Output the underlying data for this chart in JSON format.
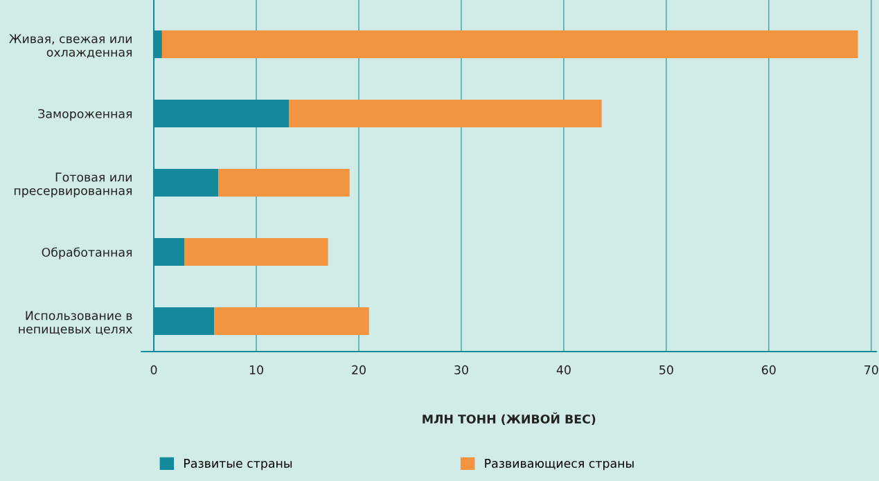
{
  "chart_data": {
    "type": "bar",
    "orientation": "horizontal",
    "stacked": true,
    "categories": [
      "Живая, свежая или\nохлажденная",
      "Замороженная",
      "Готовая или\nпресервированная",
      "Обработанная",
      "Использование в\nнепищевых целях"
    ],
    "series": [
      {
        "name": "Развитые страны",
        "color": "#128a9c",
        "values": [
          0.8,
          13.2,
          6.3,
          3.0,
          5.9
        ]
      },
      {
        "name": "Развивающиеся страны",
        "color": "#f39441",
        "values": [
          67.9,
          30.5,
          12.8,
          14.0,
          15.1
        ]
      }
    ],
    "xlabel": "МЛН ТОНН (ЖИВОЙ ВЕС)",
    "xlim": [
      -1.2,
      70.5
    ],
    "xticks": [
      0,
      10,
      20,
      30,
      40,
      50,
      60,
      70
    ],
    "grid": "x",
    "legend": "bottom left"
  }
}
